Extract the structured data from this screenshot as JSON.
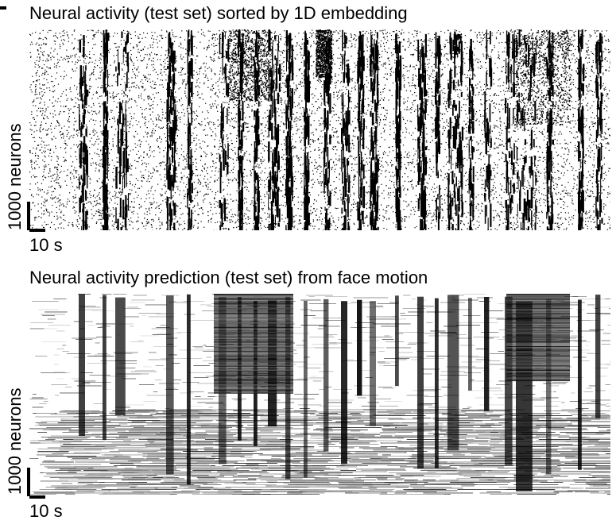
{
  "chart_data": [
    {
      "type": "heatmap",
      "title": "Neural activity (test set) sorted by 1D embedding",
      "ylabel": "1000 neurons",
      "xlabel": "10 s",
      "colormap": [
        "#ffffff",
        "#000000"
      ],
      "grid": false,
      "legend": "none"
    },
    {
      "type": "heatmap",
      "title": "Neural activity prediction (test set) from face motion",
      "ylabel": "1000 neurons",
      "xlabel": "10 s",
      "colormap": [
        "#ffffff",
        "#000000"
      ],
      "grid": false,
      "legend": "none"
    }
  ]
}
